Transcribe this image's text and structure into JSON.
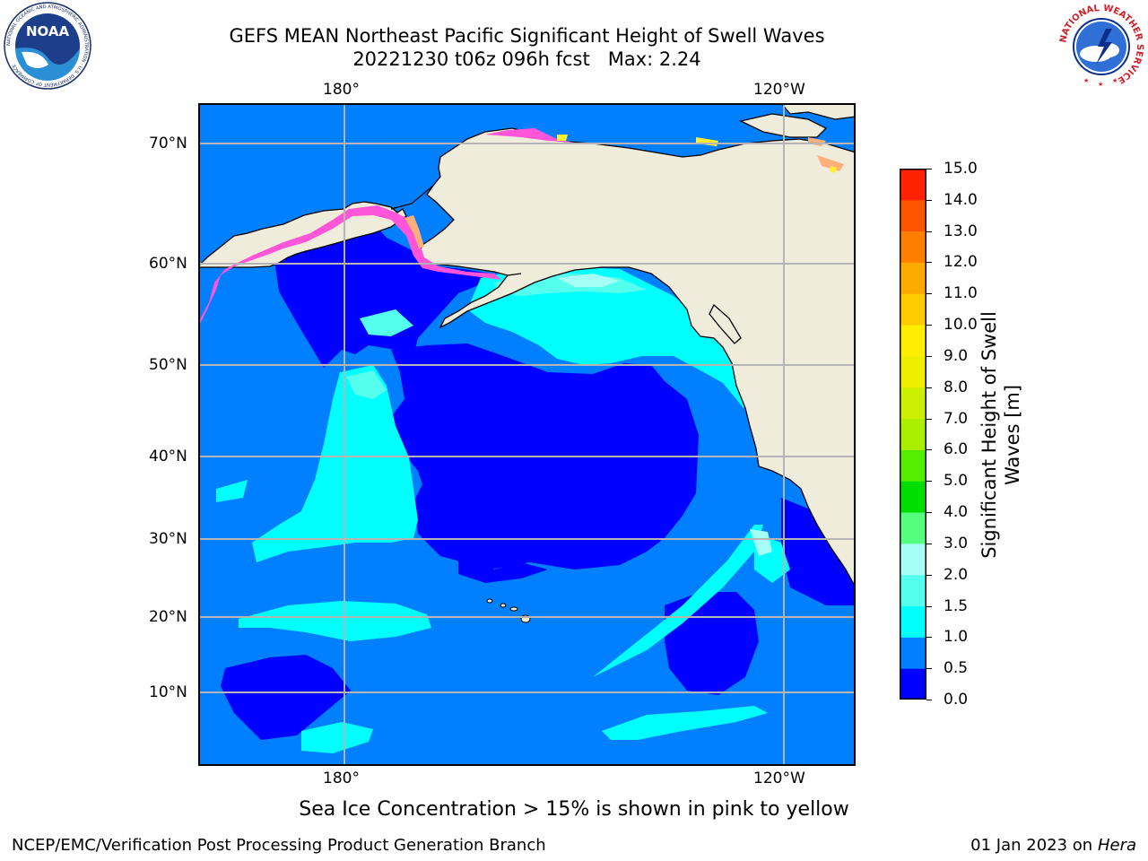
{
  "header": {
    "title_line1": "GEFS MEAN Northeast Pacific Significant Height of Swell Waves",
    "title_line2": "20221230 t06z 096h fcst   Max: 2.24"
  },
  "logos": {
    "left": {
      "name": "noaa-logo",
      "text": "NOAA",
      "ring_text": "NATIONAL OCEANIC AND ATMOSPHERIC ADMINISTRATION · U.S. DEPARTMENT OF COMMERCE"
    },
    "right": {
      "name": "nws-logo",
      "ring_text": "NATIONAL WEATHER SERVICE"
    }
  },
  "map": {
    "lon_labels_top": [
      "180°",
      "120°W"
    ],
    "lon_labels_bottom": [
      "180°",
      "120°W"
    ],
    "lat_labels": [
      "70°N",
      "60°N",
      "50°N",
      "40°N",
      "30°N",
      "20°N",
      "10°N"
    ],
    "colors": {
      "ocean_0": "#0000ff",
      "ocean_05": "#0080ff",
      "ocean_1": "#00ffff",
      "ocean_15": "#55ffee",
      "ocean_2": "#a6fff6",
      "land": "#efecdc",
      "ice_pink": "#ff55d8",
      "ice_orange": "#ffb07a",
      "ice_yellow": "#ffee33",
      "grid": "#b5b5b5"
    }
  },
  "colorbar": {
    "ticks": [
      "0.0",
      "0.5",
      "1.0",
      "1.5",
      "2.0",
      "3.0",
      "4.0",
      "5.0",
      "6.0",
      "7.0",
      "8.0",
      "9.0",
      "10.0",
      "11.0",
      "12.0",
      "13.0",
      "14.0",
      "15.0"
    ],
    "colors": [
      "#0000ff",
      "#0080ff",
      "#00ffff",
      "#55ffee",
      "#a6fff6",
      "#55ff80",
      "#00dd00",
      "#55ee00",
      "#aaee00",
      "#ccee00",
      "#eeee00",
      "#ffee00",
      "#ffcc00",
      "#ffaa00",
      "#ff8000",
      "#ff5500",
      "#ff2200",
      "#ff0000"
    ],
    "label": "Significant Height of Swell\nWaves [m]"
  },
  "subtitle": "Sea Ice Concentration > 15% is shown in pink to yellow",
  "footer": {
    "left": "NCEP/EMC/Verification Post Processing Product Generation Branch",
    "right_date": "01 Jan 2023 on ",
    "right_host": "Hera"
  }
}
